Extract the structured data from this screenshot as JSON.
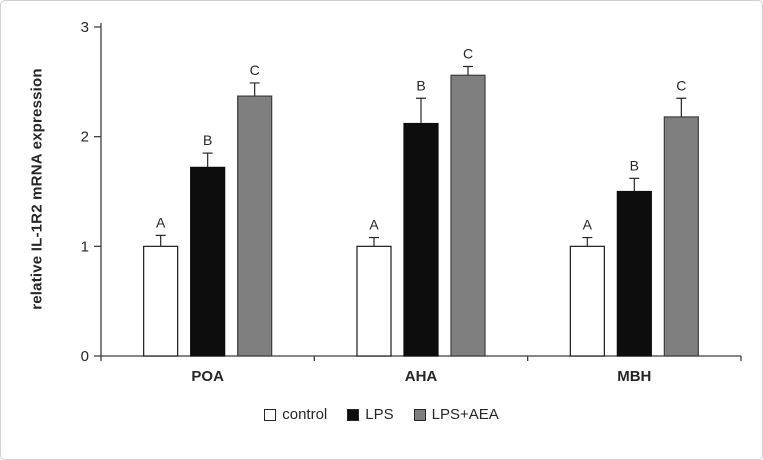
{
  "chart_data": {
    "type": "bar",
    "title": "",
    "ylabel": "relative IL-1R2 mRNA expression",
    "xlabel": "",
    "ylim": [
      0,
      3
    ],
    "yticks": [
      0,
      1,
      2,
      3
    ],
    "grid": false,
    "legend_position": "bottom",
    "categories": [
      "POA",
      "AHA",
      "MBH"
    ],
    "series": [
      {
        "name": "control",
        "color": "#ffffff",
        "border": "#1a1a1a",
        "values": [
          1.0,
          1.0,
          1.0
        ],
        "errors": [
          0.1,
          0.08,
          0.08
        ],
        "letters": [
          "A",
          "A",
          "A"
        ]
      },
      {
        "name": "LPS",
        "color": "#0d0d0d",
        "border": "#0d0d0d",
        "values": [
          1.72,
          2.12,
          1.5
        ],
        "errors": [
          0.13,
          0.23,
          0.12
        ],
        "letters": [
          "B",
          "B",
          "B"
        ]
      },
      {
        "name": "LPS+AEA",
        "color": "#7f7f7f",
        "border": "#3f3f3f",
        "values": [
          2.37,
          2.56,
          2.18
        ],
        "errors": [
          0.12,
          0.08,
          0.17
        ],
        "letters": [
          "C",
          "C",
          "C"
        ]
      }
    ],
    "colors": {
      "axis": "#3f3f3f",
      "text": "#262626"
    }
  }
}
